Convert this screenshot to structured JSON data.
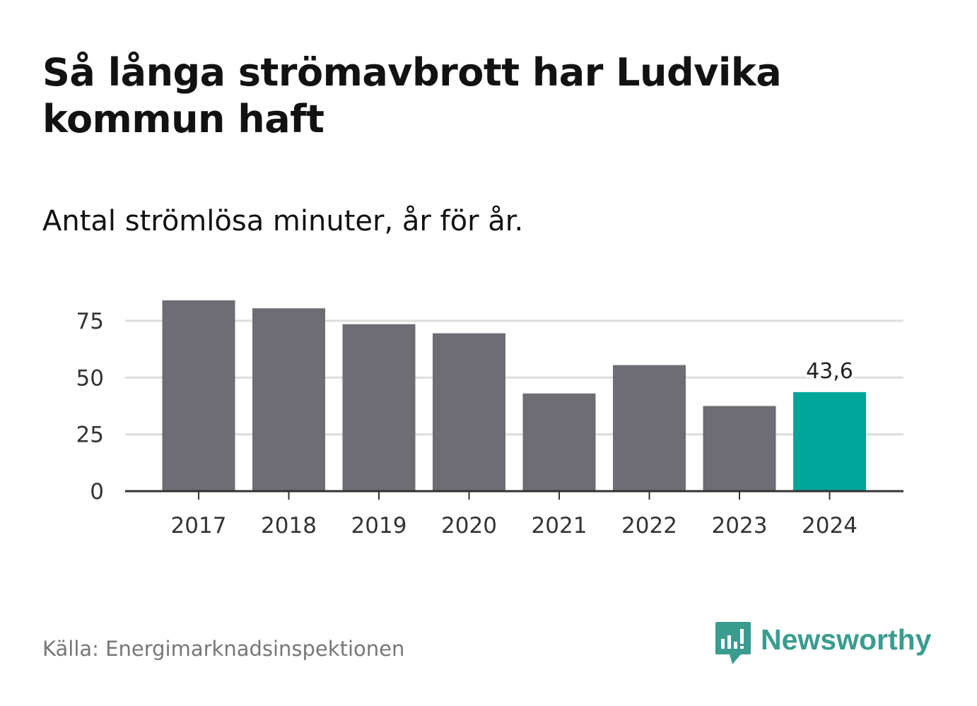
{
  "title": "Så långa strömavbrott har Ludvika kommun haft",
  "subtitle": "Antal strömlösa minuter, år för år.",
  "source": "Källa: Energimarknadsinspektionen",
  "brand": {
    "name": "Newsworthy",
    "icon": "newsworthy-logo-icon",
    "color": "#3a9c8f"
  },
  "colors": {
    "bar": "#6e6d73",
    "highlight": "#00a59a",
    "grid": "#dddddd",
    "axis": "#333333",
    "tick_text": "#333333"
  },
  "chart_data": {
    "type": "bar",
    "title": "Så långa strömavbrott har Ludvika kommun haft",
    "subtitle": "Antal strömlösa minuter, år för år.",
    "xlabel": "",
    "ylabel": "",
    "categories": [
      "2017",
      "2018",
      "2019",
      "2020",
      "2021",
      "2022",
      "2023",
      "2024"
    ],
    "values": [
      84,
      80.5,
      73.5,
      69.5,
      43,
      55.5,
      37.5,
      43.6
    ],
    "ylim": [
      0,
      84
    ],
    "yticks": [
      0,
      25,
      50,
      75
    ],
    "ytick_labels": [
      "0",
      "25",
      "50",
      "75"
    ],
    "grid": true,
    "highlight_index": 7,
    "data_labels": [
      {
        "index": 7,
        "text": "43,6"
      }
    ]
  }
}
